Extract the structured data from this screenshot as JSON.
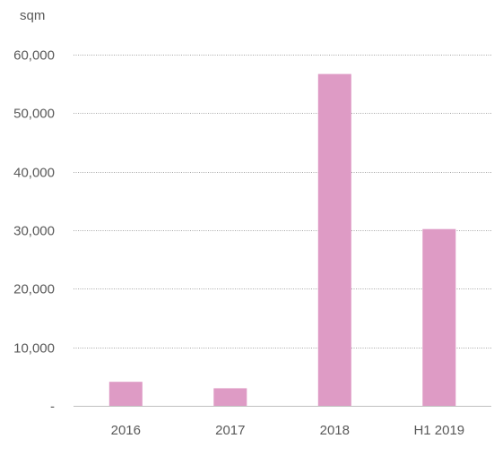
{
  "chart_data": {
    "type": "bar",
    "ylabel": "sqm",
    "categories": [
      "2016",
      "2017",
      "2018",
      "H1 2019"
    ],
    "values": [
      4100,
      3000,
      56700,
      30200
    ],
    "ylim": [
      0,
      60000
    ],
    "yticks": [
      0,
      10000,
      20000,
      30000,
      40000,
      50000,
      60000
    ],
    "ytick_labels": [
      "-",
      "10,000",
      "20,000",
      "30,000",
      "40,000",
      "50,000",
      "60,000"
    ],
    "grid": true,
    "colors": {
      "bar": "#DE9BC5",
      "grid": "#A6A6A6",
      "axis": "#BFBFBF",
      "text": "#595959"
    }
  }
}
